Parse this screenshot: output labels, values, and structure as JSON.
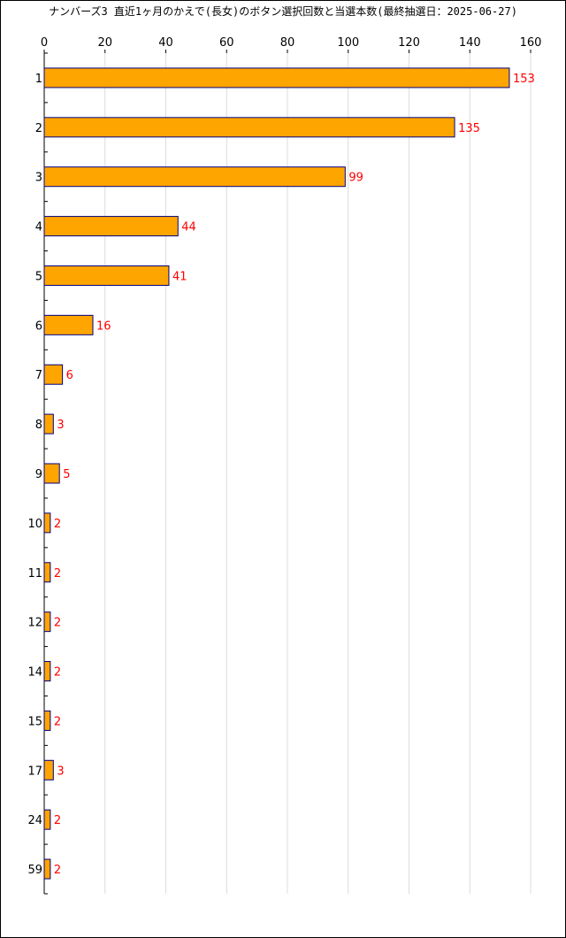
{
  "chart_data": {
    "type": "bar",
    "orientation": "horizontal",
    "title": "ナンバーズ3 直近1ヶ月のかえで(長女)のボタン選択回数と当選本数(最終抽選日：2025-06-27)",
    "categories": [
      "1",
      "2",
      "3",
      "4",
      "5",
      "6",
      "7",
      "8",
      "9",
      "10",
      "11",
      "12",
      "14",
      "15",
      "17",
      "24",
      "59"
    ],
    "values": [
      153,
      135,
      99,
      44,
      41,
      16,
      6,
      3,
      5,
      2,
      2,
      2,
      2,
      2,
      3,
      2,
      2
    ],
    "xticks": [
      "0",
      "20",
      "40",
      "60",
      "80",
      "100",
      "120",
      "140",
      "160"
    ],
    "xlim": [
      0,
      160
    ],
    "grid": true,
    "bar_color": "#ffa500",
    "bar_border_color": "#000080",
    "value_label_color": "#ff0000",
    "xlabel": "",
    "ylabel": ""
  }
}
